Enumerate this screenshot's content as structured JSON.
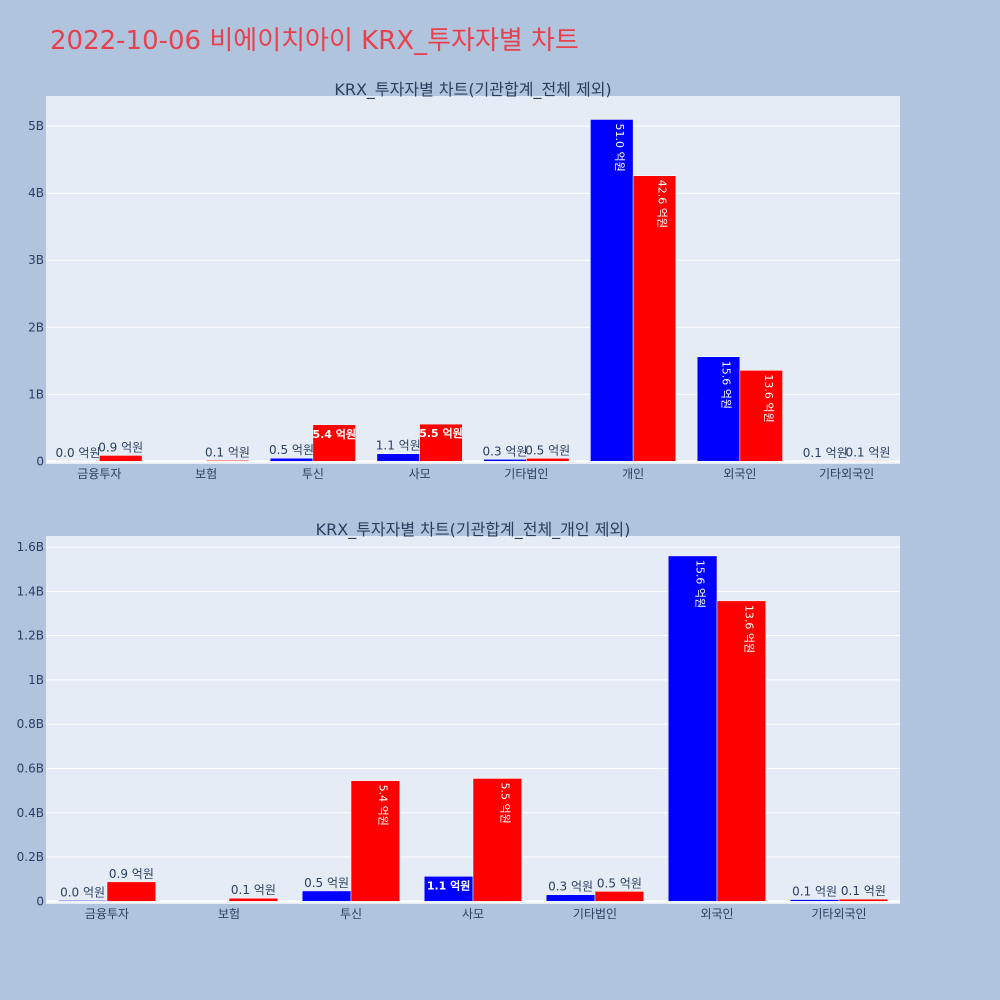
{
  "page": {
    "title": "2022-10-06 비에이치아이 KRX_투자자별 차트"
  },
  "colors": {
    "background": "#b0c4de",
    "plot_background": "#e5ecf6",
    "title": "#e8414d",
    "series_a": "#0000ff",
    "series_b": "#ff0000",
    "text": "#2a3f5f"
  },
  "chart_data": [
    {
      "type": "bar",
      "title": "KRX_투자자별 차트(기관합계_전체 제외)",
      "categories": [
        "금융투자",
        "보험",
        "투신",
        "사모",
        "기타법인",
        "개인",
        "외국인",
        "기타외국인"
      ],
      "series": [
        {
          "values": [
            0.004,
            null,
            0.047,
            0.113,
            0.03,
            5.1,
            1.56,
            0.008
          ],
          "labels": [
            "0.0 억원",
            "",
            "0.5 억원",
            "1.1 억원",
            "0.3 억원",
            "51.0 억원",
            "15.6 억원",
            "0.1 억원"
          ]
        },
        {
          "values": [
            0.088,
            0.014,
            0.545,
            0.555,
            0.045,
            4.26,
            1.357,
            0.01
          ],
          "labels": [
            "0.9 억원",
            "0.1 억원",
            "5.4 억원",
            "5.5 억원",
            "0.5 억원",
            "42.6 억원",
            "13.6 억원",
            "0.1 억원"
          ]
        }
      ],
      "yunit": "B",
      "ylim": [
        -0.04,
        5.45
      ],
      "yticks": [
        0,
        1,
        2,
        3,
        4,
        5
      ],
      "ytick_labels": [
        "0",
        "1B",
        "2B",
        "3B",
        "4B",
        "5B"
      ],
      "grid": true
    },
    {
      "type": "bar",
      "title": "KRX_투자자별 차트(기관합계_전체_개인 제외)",
      "categories": [
        "금융투자",
        "보험",
        "투신",
        "사모",
        "기타법인",
        "외국인",
        "기타외국인"
      ],
      "series": [
        {
          "values": [
            0.004,
            null,
            0.047,
            0.113,
            0.03,
            1.56,
            0.008
          ],
          "labels": [
            "0.0 억원",
            "",
            "0.5 억원",
            "1.1 억원",
            "0.3 억원",
            "15.6 억원",
            "0.1 억원"
          ]
        },
        {
          "values": [
            0.088,
            0.014,
            0.545,
            0.555,
            0.045,
            1.357,
            0.01
          ],
          "labels": [
            "0.9 억원",
            "0.1 억원",
            "5.4 억원",
            "5.5 억원",
            "0.5 억원",
            "13.6 억원",
            "0.1 억원"
          ]
        }
      ],
      "yunit": "B",
      "ylim": [
        -0.012,
        1.65
      ],
      "yticks": [
        0,
        0.2,
        0.4,
        0.6,
        0.8,
        1,
        1.2,
        1.4,
        1.6
      ],
      "ytick_labels": [
        "0",
        "0.2B",
        "0.4B",
        "0.6B",
        "0.8B",
        "1B",
        "1.2B",
        "1.4B",
        "1.6B"
      ],
      "grid": true
    }
  ]
}
